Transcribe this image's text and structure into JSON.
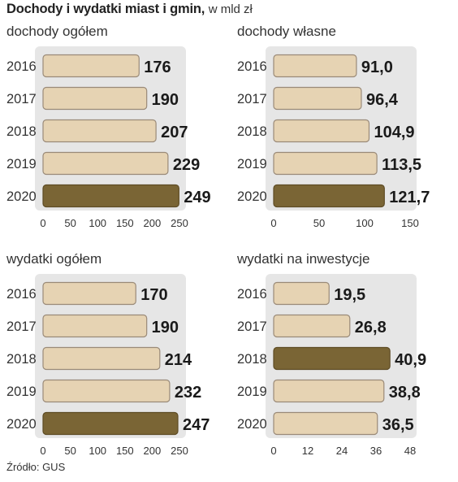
{
  "title": "Dochody i wydatki miast i gmin,",
  "subtitle": "w mld zł",
  "source": "Źródło: GUS",
  "colors": {
    "bar_light": "#e6d3b3",
    "bar_dark": "#7a6535",
    "bar_border": "#9a8a78",
    "background_panel": "#e6e6e6",
    "text": "#222222"
  },
  "chart_data": [
    {
      "type": "bar",
      "orientation": "horizontal",
      "title": "dochody ogółem",
      "categories": [
        "2016",
        "2017",
        "2018",
        "2019",
        "2020"
      ],
      "values": [
        176,
        190,
        207,
        229,
        249
      ],
      "value_labels": [
        "176",
        "190",
        "207",
        "229",
        "249"
      ],
      "highlight": "2020",
      "xlim": [
        0,
        250
      ],
      "xticks": [
        "0",
        "50",
        "100",
        "150",
        "200",
        "250"
      ],
      "xtick_values": [
        0,
        50,
        100,
        150,
        200,
        250
      ]
    },
    {
      "type": "bar",
      "orientation": "horizontal",
      "title": "dochody własne",
      "categories": [
        "2016",
        "2017",
        "2018",
        "2019",
        "2020"
      ],
      "values": [
        91.0,
        96.4,
        104.9,
        113.5,
        121.7
      ],
      "value_labels": [
        "91,0",
        "96,4",
        "104,9",
        "113,5",
        "121,7"
      ],
      "highlight": "2020",
      "xlim": [
        0,
        150
      ],
      "xticks": [
        "0",
        "50",
        "100",
        "150"
      ],
      "xtick_values": [
        0,
        50,
        100,
        150
      ]
    },
    {
      "type": "bar",
      "orientation": "horizontal",
      "title": "wydatki ogółem",
      "categories": [
        "2016",
        "2017",
        "2018",
        "2019",
        "2020"
      ],
      "values": [
        170,
        190,
        214,
        232,
        247
      ],
      "value_labels": [
        "170",
        "190",
        "214",
        "232",
        "247"
      ],
      "highlight": "2020",
      "xlim": [
        0,
        250
      ],
      "xticks": [
        "0",
        "50",
        "100",
        "150",
        "200",
        "250"
      ],
      "xtick_values": [
        0,
        50,
        100,
        150,
        200,
        250
      ]
    },
    {
      "type": "bar",
      "orientation": "horizontal",
      "title": "wydatki na inwestycje",
      "categories": [
        "2016",
        "2017",
        "2018",
        "2019",
        "2020"
      ],
      "values": [
        19.5,
        26.8,
        40.9,
        38.8,
        36.5
      ],
      "value_labels": [
        "19,5",
        "26,8",
        "40,9",
        "38,8",
        "36,5"
      ],
      "highlight": "2018",
      "xlim": [
        0,
        48
      ],
      "xticks": [
        "0",
        "12",
        "24",
        "36",
        "48"
      ],
      "xtick_values": [
        0,
        12,
        24,
        36,
        48
      ]
    }
  ]
}
